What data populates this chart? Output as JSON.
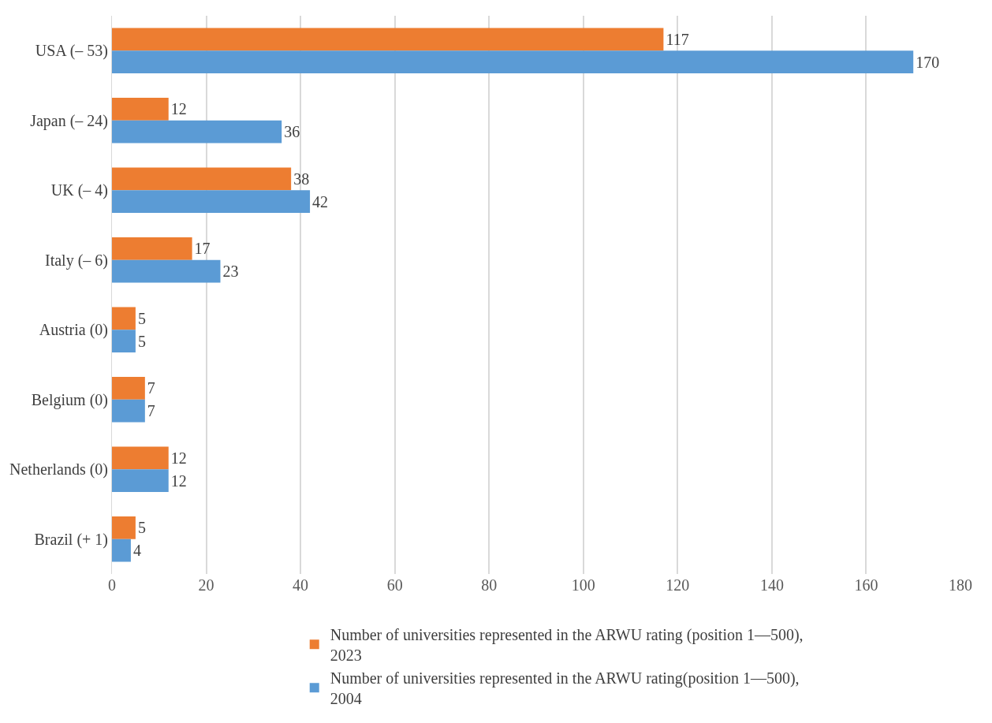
{
  "chart_data": {
    "type": "bar",
    "orientation": "horizontal",
    "categories": [
      "USA (– 53)",
      "Japan (– 24)",
      "UK (– 4)",
      "Italy (– 6)",
      "Austria (0)",
      "Belgium (0)",
      "Netherlands (0)",
      "Brazil (+ 1)"
    ],
    "series": [
      {
        "name": "Number of universities represented in the ARWU rating (position 1—500), 2023",
        "color": "#ed7d31",
        "values": [
          117,
          12,
          38,
          17,
          5,
          7,
          12,
          5
        ]
      },
      {
        "name": "Number of universities represented in the ARWU rating(position 1—500), 2004",
        "color": "#5b9bd5",
        "values": [
          170,
          36,
          42,
          23,
          5,
          7,
          12,
          4
        ]
      }
    ],
    "xlim": [
      0,
      180
    ],
    "xticks": [
      0,
      20,
      40,
      60,
      80,
      100,
      120,
      140,
      160,
      180
    ],
    "grid": "x",
    "legend": "bottom",
    "data_labels": true
  }
}
